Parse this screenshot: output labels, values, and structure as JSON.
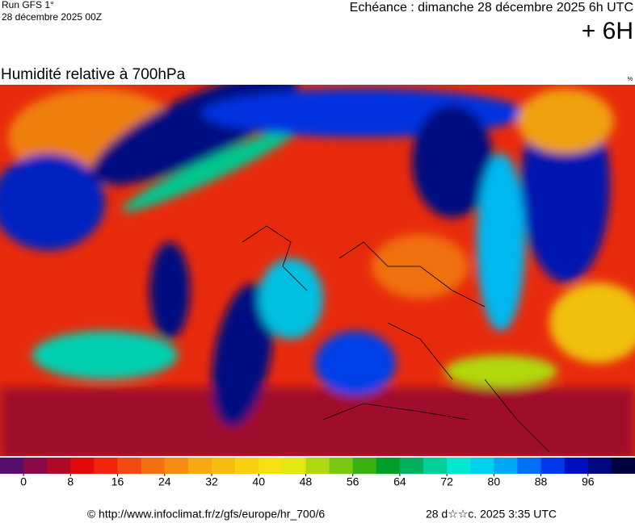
{
  "header": {
    "run": "Run GFS 1°",
    "run_date": "28 décembre 2025 00Z",
    "valid": "Echéance : dimanche 28 décembre 2025 6h UTC",
    "lead": "+ 6H"
  },
  "map": {
    "title": "Humidité relative à 700hPa",
    "unit": "%"
  },
  "colorbar": {
    "range": [
      -4,
      104
    ],
    "ticks": [
      0,
      8,
      16,
      24,
      32,
      40,
      48,
      56,
      64,
      72,
      80,
      88,
      96
    ],
    "colors": [
      "#55106e",
      "#8a0a48",
      "#b00a28",
      "#e20a0a",
      "#f2250c",
      "#f24a10",
      "#f27010",
      "#f58c10",
      "#f8a810",
      "#f8bc10",
      "#f8d010",
      "#f5e010",
      "#e0e810",
      "#b0d810",
      "#78c810",
      "#38b010",
      "#00a028",
      "#00b060",
      "#00d098",
      "#00e8d0",
      "#00d0f0",
      "#00a8f8",
      "#0070f8",
      "#0038f0",
      "#0010c0",
      "#000880",
      "#000040"
    ]
  },
  "footer": {
    "source": "© http://www.infoclimat.fr/z/gfs/europe/hr_700/6",
    "generated": "28 d☆☆c. 2025  3:35 UTC"
  }
}
